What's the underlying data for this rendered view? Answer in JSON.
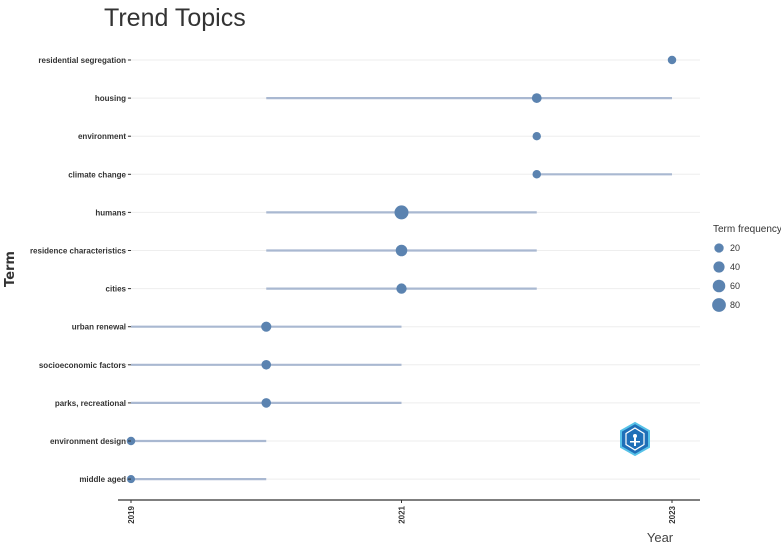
{
  "chart_data": {
    "type": "scatter",
    "title": "Trend Topics",
    "xlabel": "Year",
    "ylabel": "Term",
    "x_ticks": [
      "2019",
      "2021",
      "2023"
    ],
    "xlim": [
      2019,
      2023
    ],
    "legend": {
      "title": "Term frequency",
      "placement": "right",
      "entries": [
        20,
        40,
        60,
        80
      ]
    },
    "colors": {
      "point": "#5b83b0",
      "range_line": "#a9b8d1",
      "grid": "#eeeeee"
    },
    "terms": [
      {
        "name": "residential segregation",
        "start": 2023,
        "median": 2023,
        "end": 2023,
        "freq": 13
      },
      {
        "name": "housing",
        "start": 2020,
        "median": 2022,
        "end": 2023,
        "freq": 24
      },
      {
        "name": "environment",
        "start": 2022,
        "median": 2022,
        "end": 2022,
        "freq": 12
      },
      {
        "name": "climate change",
        "start": 2022,
        "median": 2022,
        "end": 2023,
        "freq": 13
      },
      {
        "name": "humans",
        "start": 2020,
        "median": 2021,
        "end": 2022,
        "freq": 85
      },
      {
        "name": "residence characteristics",
        "start": 2020,
        "median": 2021,
        "end": 2022,
        "freq": 45
      },
      {
        "name": "cities",
        "start": 2020,
        "median": 2021,
        "end": 2022,
        "freq": 30
      },
      {
        "name": "urban renewal",
        "start": 2019,
        "median": 2020,
        "end": 2021,
        "freq": 28
      },
      {
        "name": "socioeconomic factors",
        "start": 2019,
        "median": 2020,
        "end": 2021,
        "freq": 22
      },
      {
        "name": "parks, recreational",
        "start": 2019,
        "median": 2020,
        "end": 2021,
        "freq": 22
      },
      {
        "name": "environment design",
        "start": 2019,
        "median": 2019,
        "end": 2020,
        "freq": 13
      },
      {
        "name": "middle aged",
        "start": 2019,
        "median": 2019,
        "end": 2020,
        "freq": 10
      }
    ]
  }
}
